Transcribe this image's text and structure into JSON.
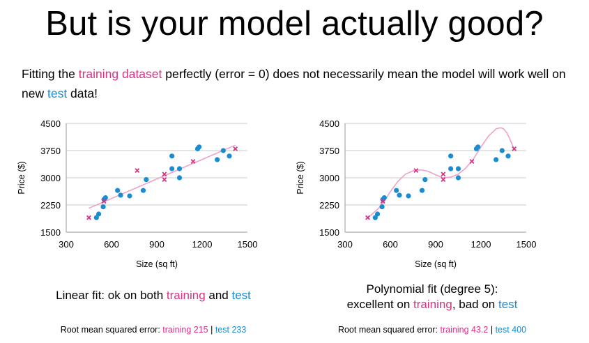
{
  "slide": {
    "title": "But is your model actually good?",
    "intro": {
      "p1": "Fitting the ",
      "training_word": "training dataset",
      "p2": " perfectly (error = 0) does not necessarily mean the model will work well on new ",
      "test_word": "test",
      "p3": " data!"
    },
    "left": {
      "caption_a": "Linear fit: ok on both ",
      "caption_training": "training",
      "caption_b": " and ",
      "caption_test": "test",
      "rmse_label": "Root mean squared error: ",
      "rmse_training": "training 215",
      "rmse_sep": " | ",
      "rmse_test": "test 233"
    },
    "right": {
      "caption_line1": "Polynomial fit (degree 5):",
      "caption_a": "excellent on ",
      "caption_training": "training",
      "caption_b": ", bad on ",
      "caption_test": "test",
      "rmse_label": "Root mean squared error: ",
      "rmse_training": "training 43.2",
      "rmse_sep": " | ",
      "rmse_test": "test 400"
    }
  },
  "colors": {
    "training": "#d63384",
    "test": "#1a8ccf",
    "fit_line": "#f0a0c8",
    "grid": "#c8c8c8"
  },
  "chart_data": [
    {
      "type": "scatter",
      "xlabel": "Size (sq ft)",
      "ylabel": "Price ($)",
      "xlim": [
        300,
        1500
      ],
      "ylim": [
        1500,
        4500
      ],
      "xticks": [
        "300",
        "600",
        "900",
        "1200",
        "1500"
      ],
      "yticks": [
        "1500",
        "2250",
        "3000",
        "3750",
        "4500"
      ],
      "grid": "horizontal",
      "series": [
        {
          "role": "test",
          "marker": "circle",
          "points": [
            [
              500,
              1900
            ],
            [
              515,
              2000
            ],
            [
              545,
              2200
            ],
            [
              550,
              2400
            ],
            [
              560,
              2450
            ],
            [
              640,
              2650
            ],
            [
              660,
              2520
            ],
            [
              720,
              2500
            ],
            [
              810,
              2650
            ],
            [
              830,
              2950
            ],
            [
              1000,
              3600
            ],
            [
              1000,
              3250
            ],
            [
              1050,
              3250
            ],
            [
              1050,
              3000
            ],
            [
              1170,
              3800
            ],
            [
              1180,
              3850
            ],
            [
              1300,
              3500
            ],
            [
              1340,
              3750
            ],
            [
              1380,
              3600
            ]
          ]
        },
        {
          "role": "training",
          "marker": "x",
          "points": [
            [
              450,
              1900
            ],
            [
              550,
              2350
            ],
            [
              770,
              3200
            ],
            [
              950,
              3100
            ],
            [
              950,
              2950
            ],
            [
              1140,
              3450
            ],
            [
              1420,
              3800
            ]
          ]
        }
      ],
      "fit": {
        "kind": "linear",
        "x": [
          450,
          1420
        ],
        "y": [
          2160,
          3900
        ]
      }
    },
    {
      "type": "scatter",
      "xlabel": "Size (sq ft)",
      "ylabel": "Price ($)",
      "xlim": [
        300,
        1500
      ],
      "ylim": [
        1500,
        4500
      ],
      "xticks": [
        "300",
        "600",
        "900",
        "1200",
        "1500"
      ],
      "yticks": [
        "1500",
        "2250",
        "3000",
        "3750",
        "4500"
      ],
      "grid": "horizontal",
      "series": [
        {
          "role": "test",
          "marker": "circle",
          "points": [
            [
              500,
              1900
            ],
            [
              515,
              2000
            ],
            [
              545,
              2200
            ],
            [
              550,
              2400
            ],
            [
              560,
              2450
            ],
            [
              640,
              2650
            ],
            [
              660,
              2520
            ],
            [
              720,
              2500
            ],
            [
              810,
              2650
            ],
            [
              830,
              2950
            ],
            [
              1000,
              3600
            ],
            [
              1000,
              3250
            ],
            [
              1050,
              3250
            ],
            [
              1050,
              3000
            ],
            [
              1170,
              3800
            ],
            [
              1180,
              3850
            ],
            [
              1300,
              3500
            ],
            [
              1340,
              3750
            ],
            [
              1380,
              3600
            ]
          ]
        },
        {
          "role": "training",
          "marker": "x",
          "points": [
            [
              450,
              1900
            ],
            [
              550,
              2350
            ],
            [
              770,
              3200
            ],
            [
              950,
              3100
            ],
            [
              950,
              2950
            ],
            [
              1140,
              3450
            ],
            [
              1420,
              3800
            ]
          ]
        }
      ],
      "fit": {
        "kind": "polynomial",
        "degree": 5,
        "x": [
          450,
          480,
          520,
          560,
          600,
          650,
          700,
          750,
          800,
          850,
          900,
          950,
          1000,
          1050,
          1100,
          1150,
          1200,
          1250,
          1300,
          1330,
          1350,
          1370,
          1390,
          1410,
          1420
        ],
        "y": [
          1900,
          2000,
          2150,
          2350,
          2620,
          2900,
          3100,
          3190,
          3220,
          3180,
          3080,
          3000,
          3020,
          3100,
          3270,
          3520,
          3850,
          4150,
          4350,
          4380,
          4350,
          4250,
          4080,
          3880,
          3800
        ]
      }
    }
  ]
}
